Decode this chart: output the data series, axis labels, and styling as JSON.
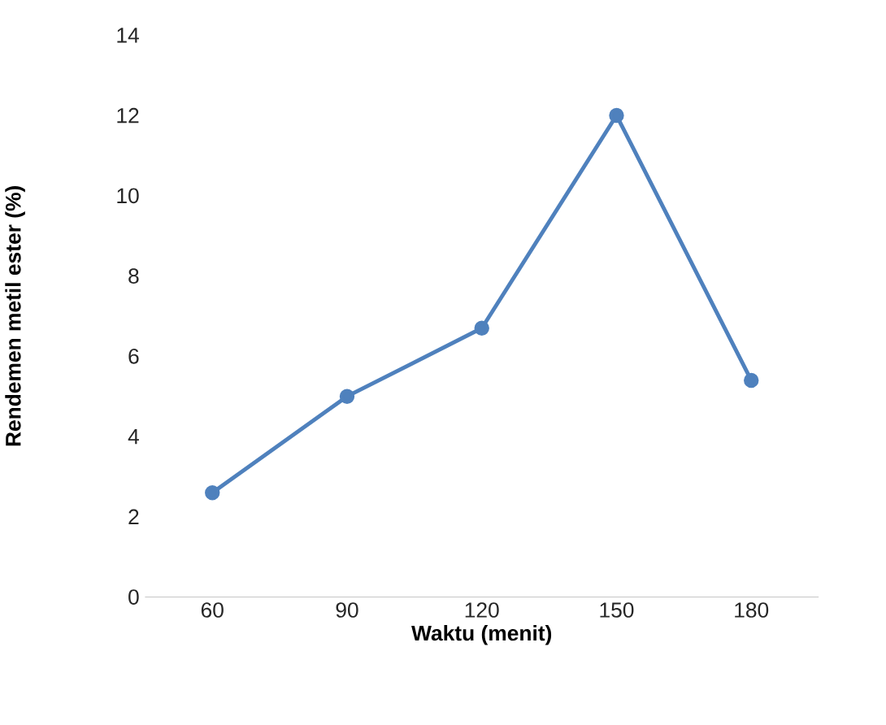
{
  "chart_data": {
    "type": "line",
    "xlabel": "Waktu (menit)",
    "ylabel": "Rendemen metil ester (%)",
    "categories": [
      "60",
      "90",
      "120",
      "150",
      "180"
    ],
    "series": [
      {
        "color": "#4f81bd",
        "values": [
          2.6,
          5.0,
          6.7,
          12.0,
          5.4
        ]
      }
    ],
    "ylim": [
      0,
      14
    ],
    "yticks": [
      0,
      2,
      4,
      6,
      8,
      10,
      12,
      14
    ],
    "marker": "circle",
    "line_style": "solid"
  }
}
